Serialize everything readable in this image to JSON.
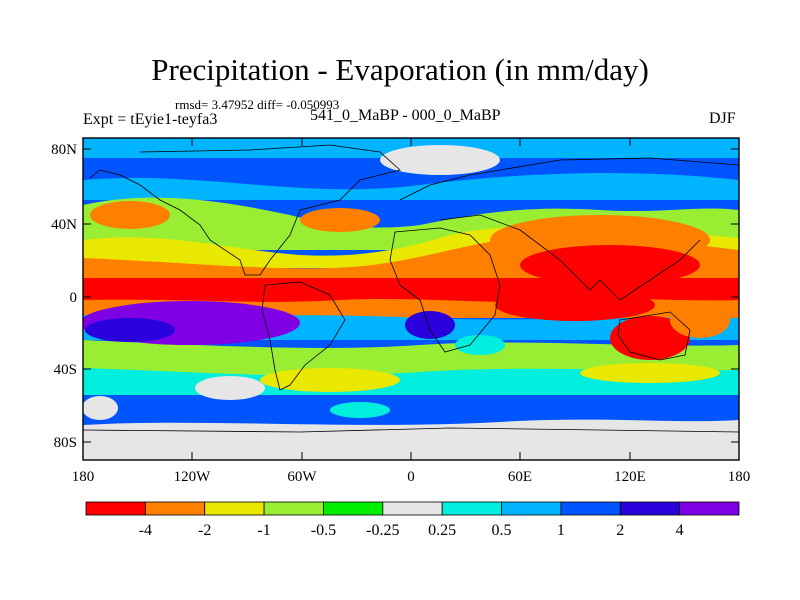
{
  "title": "Precipitation - Evaporation (in mm/day)",
  "stats": "rmsd= 3.47952 diff= -0.050993",
  "experiment": "Expt = tEyie1-teyfa3",
  "comparison": "541_0_MaBP - 000_0_MaBP",
  "season": "DJF",
  "lat_ticks": [
    "80N",
    "40N",
    "0",
    "40S",
    "80S"
  ],
  "lon_ticks": [
    "180",
    "120W",
    "60W",
    "0",
    "60E",
    "120E",
    "180"
  ],
  "colorbar": {
    "colors": [
      "#ff0000",
      "#ff8000",
      "#e8e800",
      "#99ee33",
      "#00ee00",
      "#e6e6e6",
      "#00eedd",
      "#00b4ff",
      "#0055ff",
      "#2a00dd",
      "#8000e6"
    ],
    "labels": [
      "-4",
      "-2",
      "-1",
      "-0.5",
      "-0.25",
      "0.25",
      "0.5",
      "1",
      "2",
      "4"
    ]
  },
  "colors": {
    "coastline": "#000000",
    "frame": "#000000"
  }
}
